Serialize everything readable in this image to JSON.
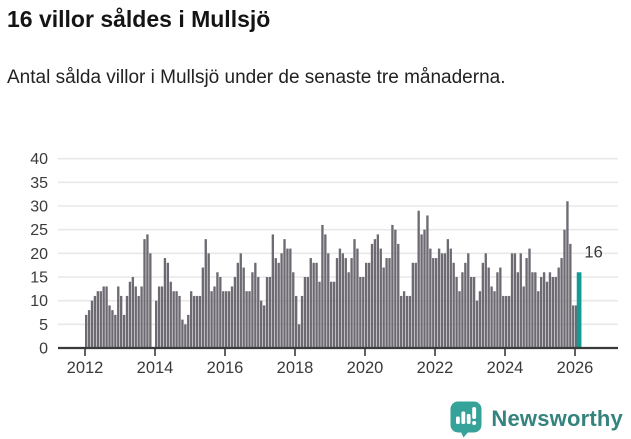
{
  "header": {
    "title": "16 villor såldes i Mullsjö",
    "subtitle": "Antal sålda villor i Mullsjö under de senaste tre månaderna."
  },
  "footer": {
    "brand": "Newsworthy"
  },
  "chart_data": {
    "type": "bar",
    "title": "16 villor såldes i Mullsjö",
    "subtitle": "Antal sålda villor i Mullsjö under de senaste tre månaderna.",
    "frequency": "monthly",
    "start": "2012-01",
    "values": [
      7,
      8,
      10,
      11,
      12,
      12,
      13,
      13,
      9,
      8,
      7,
      13,
      11,
      7,
      11,
      14,
      15,
      13,
      11,
      13,
      23,
      24,
      20,
      0,
      10,
      13,
      13,
      19,
      18,
      14,
      12,
      12,
      11,
      6,
      5,
      7,
      12,
      11,
      11,
      11,
      17,
      23,
      20,
      12,
      13,
      16,
      15,
      12,
      12,
      12,
      13,
      15,
      18,
      20,
      17,
      12,
      12,
      16,
      18,
      15,
      10,
      9,
      15,
      15,
      24,
      19,
      18,
      20,
      23,
      21,
      21,
      16,
      11,
      5,
      11,
      15,
      15,
      19,
      18,
      18,
      14,
      26,
      24,
      20,
      14,
      14,
      19,
      21,
      20,
      19,
      16,
      19,
      23,
      21,
      15,
      15,
      18,
      18,
      22,
      23,
      24,
      21,
      17,
      19,
      19,
      26,
      25,
      22,
      11,
      12,
      11,
      11,
      18,
      18,
      29,
      24,
      25,
      28,
      21,
      19,
      19,
      21,
      20,
      20,
      23,
      21,
      18,
      15,
      12,
      16,
      18,
      20,
      15,
      15,
      10,
      12,
      18,
      20,
      17,
      13,
      12,
      16,
      17,
      11,
      11,
      11,
      20,
      20,
      16,
      20,
      13,
      19,
      21,
      16,
      16,
      12,
      15,
      16,
      14,
      16,
      15,
      15,
      17,
      19,
      25,
      31,
      22,
      9,
      9,
      16
    ],
    "highlight": {
      "index": 169,
      "value": 16,
      "label": "16"
    },
    "x_axis": {
      "tick_labels": [
        "2012",
        "2014",
        "2016",
        "2018",
        "2020",
        "2022",
        "2024",
        "2026"
      ],
      "tick_month_index": [
        0,
        24,
        48,
        72,
        96,
        120,
        144,
        168
      ]
    },
    "y_axis": {
      "ticks": [
        0,
        5,
        10,
        15,
        20,
        25,
        30,
        35,
        40
      ],
      "range": [
        0,
        40
      ]
    },
    "grid": "horizontal",
    "legend": "none",
    "colors": {
      "bar": "#6e6a72",
      "highlight": "#129c95",
      "gridline": "#e8e8e8",
      "axis": "#3a3a3a",
      "tick_text": "#3a3a3a"
    }
  }
}
